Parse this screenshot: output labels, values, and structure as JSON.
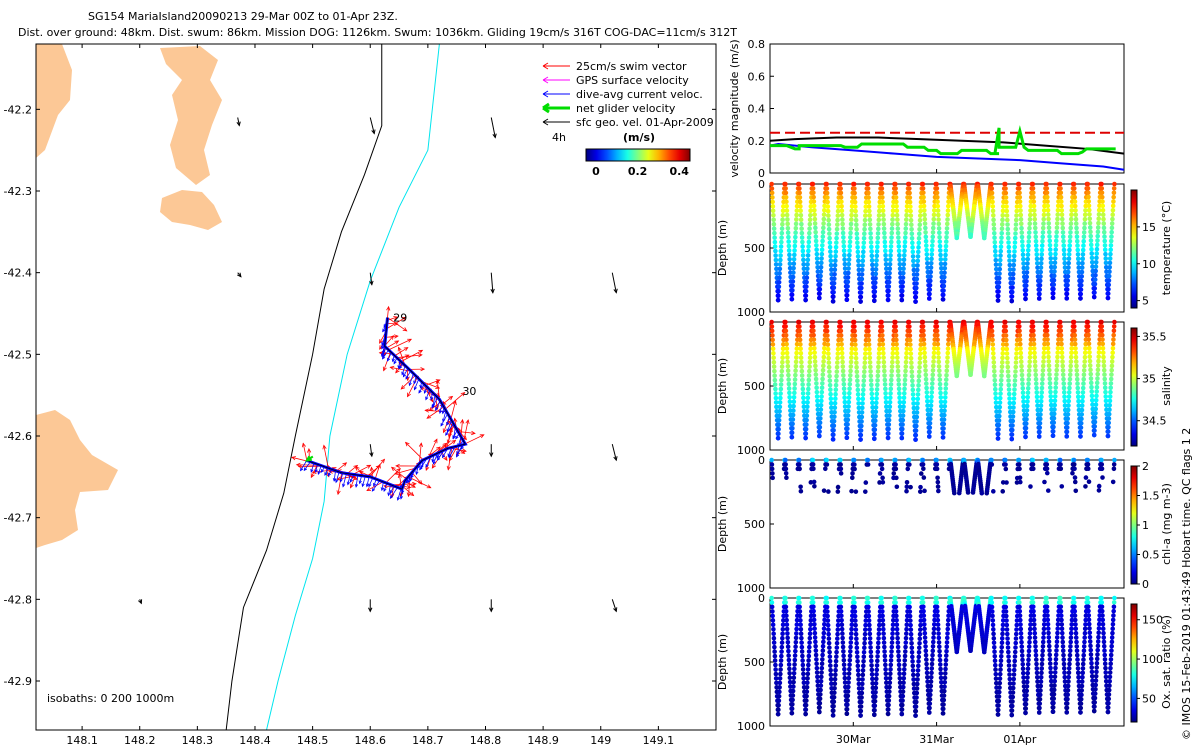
{
  "header": {
    "line1": "SG154 MariaIsland20090213 29-Mar 00Z to 01-Apr 23Z.",
    "line2": "Dist. over ground: 48km. Dist. swum: 86km. Mission DOG: 1126km. Swum: 1036km. Gliding 19cm/s 316T COG-DAC=11cm/s 312T"
  },
  "credit": "© IMOS 15-Feb-2019 01:43:49 Hobart time. QC flags 1  2",
  "colors": {
    "land": "#fcc896",
    "swim": "#ff0000",
    "gps": "#ff00ff",
    "dac": "#0000ff",
    "net": "#00dd00",
    "sfc": "#000000",
    "isobath200": "#000000",
    "isobath1000": "#00e5ee",
    "mag_limit": "#dd0000"
  },
  "chart_data": [
    {
      "type": "scatter",
      "name": "glider-track-map",
      "xlim": [
        148.02,
        149.2
      ],
      "ylim": [
        -42.96,
        -42.12
      ],
      "xticks": [
        148.1,
        148.2,
        148.3,
        148.4,
        148.5,
        148.6,
        148.7,
        148.8,
        148.9,
        149,
        149.1
      ],
      "yticks": [
        -42.2,
        -42.3,
        -42.4,
        -42.5,
        -42.6,
        -42.7,
        -42.8,
        -42.9
      ],
      "legend": [
        "25cm/s swim vector",
        "GPS surface velocity",
        "dive-avg current veloc.",
        "net glider velocity",
        "sfc geo. vel. 01-Apr-2009"
      ],
      "legend_position": "top-right",
      "speed_colorbar": {
        "label": "(m/s)",
        "ticks": [
          0,
          0.2,
          0.4
        ],
        "range": [
          0,
          0.5
        ]
      },
      "age_label": "4h",
      "isobaths_note": "isobaths: 0   200   1000m",
      "day_labels": [
        {
          "text": "29",
          "lon": 148.64,
          "lat": -42.46
        },
        {
          "text": "30",
          "lon": 148.76,
          "lat": -42.55
        }
      ],
      "track": [
        [
          148.63,
          -42.455
        ],
        [
          148.625,
          -42.49
        ],
        [
          148.67,
          -42.52
        ],
        [
          148.72,
          -42.555
        ],
        [
          148.765,
          -42.61
        ],
        [
          148.735,
          -42.615
        ],
        [
          148.69,
          -42.63
        ],
        [
          148.66,
          -42.655
        ],
        [
          148.655,
          -42.665
        ],
        [
          148.6,
          -42.65
        ],
        [
          148.55,
          -42.645
        ],
        [
          148.49,
          -42.63
        ]
      ],
      "isobath_200": [
        [
          148.62,
          -42.12
        ],
        [
          148.62,
          -42.22
        ],
        [
          148.59,
          -42.28
        ],
        [
          148.55,
          -42.35
        ],
        [
          148.52,
          -42.42
        ],
        [
          148.5,
          -42.5
        ],
        [
          148.47,
          -42.6
        ],
        [
          148.45,
          -42.67
        ],
        [
          148.42,
          -42.74
        ],
        [
          148.38,
          -42.81
        ],
        [
          148.36,
          -42.9
        ],
        [
          148.35,
          -42.96
        ]
      ],
      "isobath_1000": [
        [
          148.72,
          -42.12
        ],
        [
          148.7,
          -42.25
        ],
        [
          148.65,
          -42.32
        ],
        [
          148.6,
          -42.41
        ],
        [
          148.56,
          -42.5
        ],
        [
          148.53,
          -42.6
        ],
        [
          148.52,
          -42.68
        ],
        [
          148.5,
          -42.75
        ],
        [
          148.47,
          -42.82
        ],
        [
          148.44,
          -42.9
        ],
        [
          148.42,
          -42.96
        ]
      ],
      "sfc_vectors": [
        {
          "lon": 148.37,
          "lat": -42.21,
          "u": 0.02,
          "v": -0.1
        },
        {
          "lon": 148.6,
          "lat": -42.21,
          "u": 0.05,
          "v": -0.2
        },
        {
          "lon": 148.81,
          "lat": -42.21,
          "u": 0.05,
          "v": -0.25
        },
        {
          "lon": 148.37,
          "lat": -42.4,
          "u": 0.04,
          "v": -0.05
        },
        {
          "lon": 148.6,
          "lat": -42.4,
          "u": 0.02,
          "v": -0.15
        },
        {
          "lon": 148.81,
          "lat": -42.4,
          "u": 0.02,
          "v": -0.25
        },
        {
          "lon": 149.02,
          "lat": -42.4,
          "u": 0.05,
          "v": -0.25
        },
        {
          "lon": 148.6,
          "lat": -42.61,
          "u": 0.02,
          "v": -0.15
        },
        {
          "lon": 148.81,
          "lat": -42.61,
          "u": 0.0,
          "v": -0.15
        },
        {
          "lon": 149.02,
          "lat": -42.61,
          "u": 0.05,
          "v": -0.2
        },
        {
          "lon": 148.2,
          "lat": -42.8,
          "u": 0.02,
          "v": -0.05
        },
        {
          "lon": 148.6,
          "lat": -42.8,
          "u": 0.0,
          "v": -0.15
        },
        {
          "lon": 148.81,
          "lat": -42.8,
          "u": 0.0,
          "v": -0.15
        },
        {
          "lon": 149.02,
          "lat": -42.8,
          "u": 0.05,
          "v": -0.15
        }
      ]
    },
    {
      "type": "line",
      "name": "velocity-magnitude",
      "ylabel": "velocity magnitude (m/s)",
      "ylim": [
        0,
        0.8
      ],
      "yticks": [
        0,
        0.2,
        0.4,
        0.6,
        0.8
      ],
      "x_range_days": [
        0,
        4.25
      ],
      "series": [
        {
          "key": "limit",
          "values": [
            [
              0,
              0.25
            ],
            [
              4.25,
              0.25
            ]
          ]
        },
        {
          "key": "dac",
          "values": [
            [
              0,
              0.17
            ],
            [
              0.1,
              0.18
            ],
            [
              0.5,
              0.16
            ],
            [
              1.0,
              0.14
            ],
            [
              1.5,
              0.12
            ],
            [
              2.0,
              0.1
            ],
            [
              2.5,
              0.09
            ],
            [
              3.0,
              0.08
            ],
            [
              3.5,
              0.06
            ],
            [
              4.0,
              0.04
            ],
            [
              4.25,
              0.02
            ]
          ]
        },
        {
          "key": "sfc",
          "values": [
            [
              0,
              0.2
            ],
            [
              0.3,
              0.21
            ],
            [
              0.8,
              0.22
            ],
            [
              1.3,
              0.22
            ],
            [
              1.8,
              0.21
            ],
            [
              2.3,
              0.2
            ],
            [
              2.8,
              0.19
            ],
            [
              3.3,
              0.17
            ],
            [
              3.8,
              0.15
            ],
            [
              4.25,
              0.12
            ]
          ]
        },
        {
          "key": "net",
          "values": [
            [
              0.0,
              0.17
            ],
            [
              0.1,
              0.17
            ],
            [
              0.2,
              0.17
            ],
            [
              0.3,
              0.15
            ],
            [
              0.35,
              0.15
            ],
            [
              0.35,
              0.17
            ],
            [
              0.75,
              0.17
            ],
            [
              0.8,
              0.17
            ],
            [
              0.85,
              0.17
            ],
            [
              0.9,
              0.16
            ],
            [
              1.0,
              0.16
            ],
            [
              1.05,
              0.16
            ],
            [
              1.1,
              0.18
            ],
            [
              1.35,
              0.18
            ],
            [
              1.5,
              0.18
            ],
            [
              1.55,
              0.18
            ],
            [
              1.6,
              0.18
            ],
            [
              1.65,
              0.16
            ],
            [
              1.8,
              0.16
            ],
            [
              1.85,
              0.16
            ],
            [
              1.9,
              0.14
            ],
            [
              2.0,
              0.14
            ],
            [
              2.05,
              0.12
            ],
            [
              2.25,
              0.12
            ],
            [
              2.3,
              0.14
            ],
            [
              2.45,
              0.14
            ],
            [
              2.6,
              0.14
            ],
            [
              2.65,
              0.12
            ],
            [
              2.75,
              0.12
            ],
            [
              2.7,
              0.12
            ],
            [
              2.75,
              0.28
            ],
            [
              2.75,
              0.16
            ],
            [
              2.9,
              0.16
            ],
            [
              2.95,
              0.16
            ],
            [
              3.0,
              0.26
            ],
            [
              3.05,
              0.16
            ],
            [
              3.1,
              0.14
            ],
            [
              3.3,
              0.14
            ],
            [
              3.4,
              0.14
            ],
            [
              3.45,
              0.14
            ],
            [
              3.5,
              0.12
            ],
            [
              3.7,
              0.12
            ],
            [
              3.75,
              0.13
            ],
            [
              3.8,
              0.15
            ],
            [
              4.1,
              0.15
            ],
            [
              4.15,
              0.15
            ]
          ]
        }
      ]
    },
    {
      "type": "scatter",
      "name": "temperature-section",
      "ylabel": "Depth (m)",
      "colorbar_label": "temperature (°C)",
      "ylim": [
        1000,
        0
      ],
      "yticks": [
        0,
        500,
        1000
      ],
      "clim": [
        4,
        20
      ],
      "cticks": [
        5,
        10,
        15
      ],
      "x_range_days": [
        0,
        4.25
      ]
    },
    {
      "type": "scatter",
      "name": "salinity-section",
      "ylabel": "Depth (m)",
      "colorbar_label": "salinity",
      "ylim": [
        1000,
        0
      ],
      "yticks": [
        0,
        500,
        1000
      ],
      "clim": [
        34.2,
        35.6
      ],
      "cticks": [
        34.5,
        35,
        35.5
      ],
      "x_range_days": [
        0,
        4.25
      ]
    },
    {
      "type": "scatter",
      "name": "chl-section",
      "ylabel": "Depth (m)",
      "colorbar_label": "chl-a (mg m-3)",
      "ylim": [
        1000,
        0
      ],
      "yticks": [
        0,
        500,
        1000
      ],
      "clim": [
        0,
        2
      ],
      "cticks": [
        0,
        0.5,
        1,
        1.5,
        2
      ],
      "x_range_days": [
        0,
        4.25
      ]
    },
    {
      "type": "scatter",
      "name": "oxygen-section",
      "ylabel": "Depth (m)",
      "colorbar_label": "Ox. sat. ratio (%)",
      "ylim": [
        1000,
        0
      ],
      "yticks": [
        0,
        500,
        1000
      ],
      "clim": [
        20,
        170
      ],
      "cticks": [
        50,
        100,
        150
      ],
      "x_range_days": [
        0,
        4.25
      ],
      "xtick_labels": [
        {
          "day": 1,
          "label": "30Mar"
        },
        {
          "day": 2,
          "label": "31Mar"
        },
        {
          "day": 3,
          "label": "01Apr"
        }
      ]
    }
  ]
}
